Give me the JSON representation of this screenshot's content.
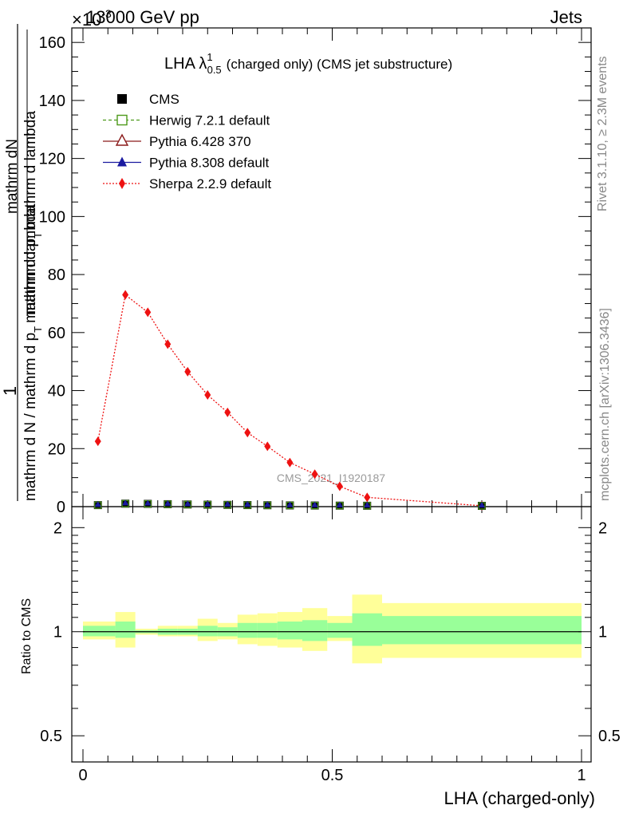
{
  "header": {
    "energy": "13000 GeV pp",
    "process": "Jets",
    "exponent": "×10",
    "exponent_power": "-3"
  },
  "side_labels": {
    "rivet": "Rivet 3.1.10, ≥ 2.3M events",
    "mcplots": "mcplots.cern.ch [arXiv:1306.3436]"
  },
  "main_title": {
    "prefix": "LHA λ",
    "superscript": "1",
    "subscript": "0.5",
    "rest": "(charged only) (CMS jet substructure)"
  },
  "ylabel": {
    "numerator": "1",
    "frac_top": "mathrm dN",
    "frac_left": "mathrm d p",
    "frac_sub": "T",
    "frac_right": "mathrm d lambda",
    "denominator": "mathrm d N / mathrm d p",
    "den_sub": "T",
    "den_rest": "mathrm d lambda"
  },
  "watermark": "CMS_2021_I1920187",
  "xlabel": "LHA (charged-only)",
  "ratio_ylabel": "Ratio to CMS",
  "legend": [
    {
      "label": "CMS",
      "color": "#000000",
      "marker": "square-filled"
    },
    {
      "label": "Herwig 7.2.1 default",
      "color": "#4d9a1a",
      "marker": "square-open"
    },
    {
      "label": "Pythia 6.428 370",
      "color": "#8b1a1a",
      "marker": "triangle-open"
    },
    {
      "label": "Pythia 8.308 default",
      "color": "#1a1aa0",
      "marker": "triangle-filled"
    },
    {
      "label": "Sherpa 2.2.9 default",
      "color": "#ee1111",
      "marker": "diamond-filled"
    }
  ],
  "chart_data": {
    "type": "line",
    "xlim": [
      0,
      1
    ],
    "ylim": [
      0,
      165
    ],
    "x_ticks": [
      "0",
      "0.5",
      "1"
    ],
    "y_ticks": [
      "0",
      "20",
      "40",
      "60",
      "80",
      "100",
      "120",
      "140",
      "160"
    ],
    "bin_edges": [
      0,
      0.065,
      0.105,
      0.15,
      0.19,
      0.23,
      0.27,
      0.31,
      0.35,
      0.39,
      0.44,
      0.49,
      0.54,
      0.6,
      1.0
    ],
    "x": [
      0.03,
      0.085,
      0.13,
      0.17,
      0.21,
      0.25,
      0.29,
      0.33,
      0.37,
      0.415,
      0.465,
      0.515,
      0.57,
      0.8
    ],
    "series": [
      {
        "name": "Sherpa 2.2.9 default",
        "values": [
          22.5,
          73,
          67,
          56,
          46.5,
          38.5,
          32.5,
          25.5,
          20.8,
          15.2,
          11.2,
          7.0,
          3.2,
          0.3
        ]
      },
      {
        "name": "CMS",
        "values": [
          0.25,
          0.75,
          0.68,
          0.57,
          0.47,
          0.39,
          0.33,
          0.26,
          0.21,
          0.15,
          0.11,
          0.07,
          0.03,
          0.003
        ]
      }
    ],
    "ratio": {
      "ylabel": "Ratio to CMS",
      "ylim": [
        0.42,
        2.3
      ],
      "y_ticks": [
        0.5,
        1,
        2
      ],
      "y_tick_labels": [
        "0.5",
        "1",
        "2"
      ],
      "reference": 1,
      "inner_band": [
        [
          0.97,
          1.04
        ],
        [
          0.96,
          1.07
        ],
        [
          0.99,
          1.01
        ],
        [
          0.98,
          1.02
        ],
        [
          0.98,
          1.02
        ],
        [
          0.97,
          1.04
        ],
        [
          0.97,
          1.03
        ],
        [
          0.96,
          1.06
        ],
        [
          0.96,
          1.06
        ],
        [
          0.95,
          1.07
        ],
        [
          0.94,
          1.08
        ],
        [
          0.96,
          1.06
        ],
        [
          0.91,
          1.13
        ],
        [
          0.92,
          1.11
        ]
      ],
      "outer_band": [
        [
          0.95,
          1.07
        ],
        [
          0.9,
          1.14
        ],
        [
          0.98,
          1.02
        ],
        [
          0.97,
          1.04
        ],
        [
          0.97,
          1.04
        ],
        [
          0.94,
          1.09
        ],
        [
          0.95,
          1.06
        ],
        [
          0.92,
          1.12
        ],
        [
          0.91,
          1.13
        ],
        [
          0.9,
          1.14
        ],
        [
          0.88,
          1.17
        ],
        [
          0.94,
          1.11
        ],
        [
          0.81,
          1.28
        ],
        [
          0.84,
          1.21
        ]
      ]
    }
  }
}
